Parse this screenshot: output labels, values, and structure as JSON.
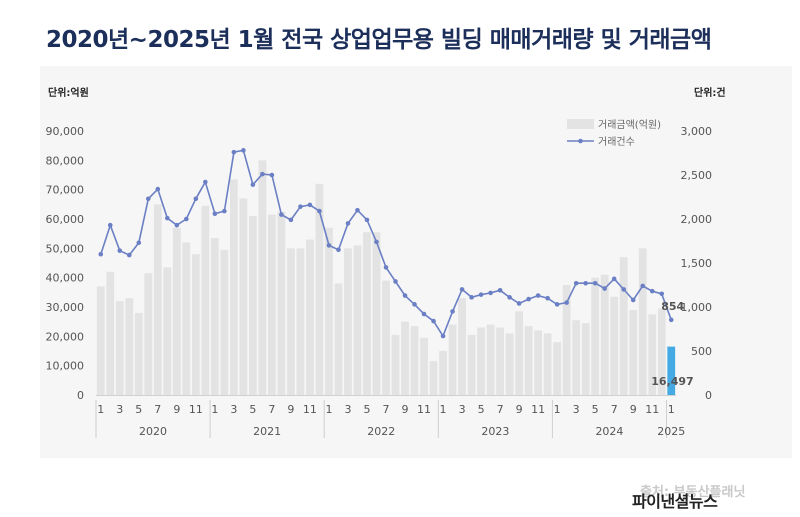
{
  "title": "2020년~2025년 1월 전국 상업업무용 빌딩 매매거래량 및 거래금액",
  "left_unit": "단위:억원",
  "right_unit": "단위:건",
  "source": "출처: 부동산플래닛",
  "watermark": "파이낸셜뉴스",
  "colors": {
    "bar": "#e3e3e3",
    "bar_highlight": "#45a9e3",
    "line": "#6b7fc4",
    "title": "#1c2f5a"
  },
  "chart_data": {
    "type": "bar+line",
    "title": "2020년~2025년 1월 전국 상업업무용 빌딩 매매거래량 및 거래금액",
    "x_tick_labels": [
      "1",
      "3",
      "5",
      "7",
      "9",
      "11",
      "1",
      "3",
      "5",
      "7",
      "9",
      "11",
      "1",
      "3",
      "5",
      "7",
      "9",
      "11",
      "1",
      "3",
      "5",
      "7",
      "9",
      "11",
      "1",
      "3",
      "5",
      "7",
      "9",
      "11",
      "1"
    ],
    "years": [
      "2020",
      "2021",
      "2022",
      "2023",
      "2024",
      "2025"
    ],
    "y_left": {
      "label": "단위:억원",
      "ylim": [
        0,
        90000
      ],
      "ticks": [
        "0",
        "10,000",
        "20,000",
        "30,000",
        "40,000",
        "50,000",
        "60,000",
        "70,000",
        "80,000",
        "90,000"
      ]
    },
    "y_right": {
      "label": "단위:건",
      "ylim": [
        0,
        3000
      ],
      "ticks": [
        "0",
        "500",
        "1,000",
        "1,500",
        "2,000",
        "2,500",
        "3,000"
      ]
    },
    "legend": {
      "position": "top-right",
      "bar_label": "거래금액(억원)",
      "line_label": "거래건수"
    },
    "series": [
      {
        "name": "거래금액(억원)",
        "type": "bar",
        "axis": "left",
        "values": [
          37000,
          42000,
          32000,
          33000,
          28000,
          41500,
          65000,
          43500,
          57000,
          52000,
          48000,
          64500,
          53500,
          49500,
          73500,
          67000,
          61000,
          80000,
          61500,
          62500,
          50000,
          50000,
          53000,
          72000,
          57000,
          38000,
          50000,
          51000,
          55500,
          55500,
          39000,
          20500,
          25000,
          23500,
          19500,
          11500,
          15000,
          24000,
          33000,
          20500,
          23000,
          24000,
          23000,
          21000,
          28500,
          23500,
          22000,
          21000,
          18000,
          37500,
          25500,
          24500,
          40000,
          41000,
          33500,
          47000,
          29000,
          50000,
          27500,
          29500,
          16497
        ]
      },
      {
        "name": "거래건수",
        "type": "line",
        "axis": "right",
        "values": [
          1600,
          1930,
          1640,
          1590,
          1730,
          2230,
          2340,
          2010,
          1930,
          2000,
          2230,
          2420,
          2060,
          2090,
          2760,
          2780,
          2390,
          2510,
          2500,
          2050,
          1990,
          2140,
          2160,
          2090,
          1700,
          1650,
          1950,
          2100,
          1990,
          1740,
          1450,
          1290,
          1130,
          1030,
          920,
          840,
          670,
          950,
          1200,
          1110,
          1140,
          1160,
          1190,
          1110,
          1040,
          1090,
          1130,
          1100,
          1030,
          1050,
          1270,
          1270,
          1270,
          1210,
          1320,
          1200,
          1080,
          1240,
          1180,
          1150,
          854
        ]
      }
    ],
    "data_labels": [
      {
        "series": "거래건수",
        "index": 60,
        "text": "854"
      },
      {
        "series": "거래금액(억원)",
        "index": 60,
        "text": "16,497"
      }
    ]
  }
}
